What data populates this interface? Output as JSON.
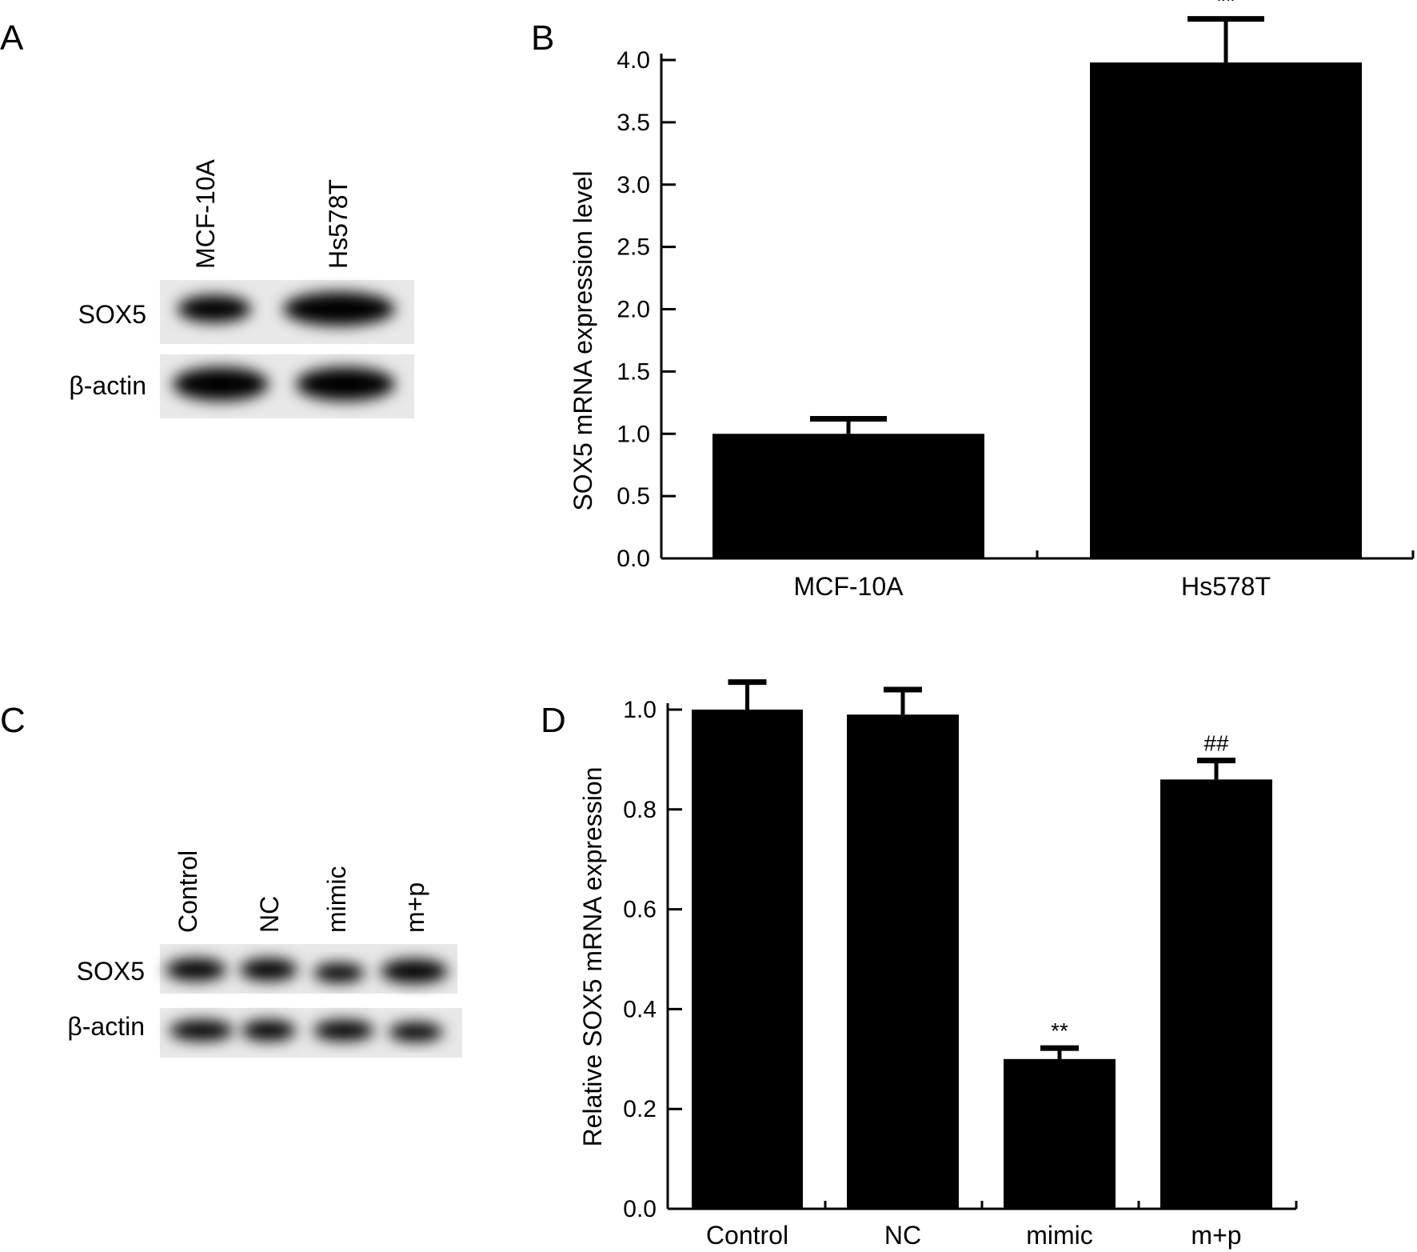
{
  "panels": {
    "A": {
      "letter": "A",
      "lanes": [
        "MCF-10A",
        "Hs578T"
      ],
      "rows": [
        {
          "label": "SOX5",
          "intensities": [
            0.78,
            1.0
          ]
        },
        {
          "label": "β-actin",
          "intensities": [
            1.0,
            1.0
          ]
        }
      ]
    },
    "C": {
      "letter": "C",
      "lanes": [
        "Control",
        "NC",
        "mimic",
        "m+p"
      ],
      "rows": [
        {
          "label": "SOX5",
          "intensities": [
            0.95,
            0.92,
            0.7,
            0.98
          ]
        },
        {
          "label": "β-actin",
          "intensities": [
            0.95,
            0.9,
            0.95,
            0.88
          ]
        }
      ]
    }
  },
  "chart_data": [
    {
      "panel": "B",
      "type": "bar",
      "letter": "B",
      "categories": [
        "MCF-10A",
        "Hs578T"
      ],
      "values": [
        1.0,
        3.98
      ],
      "errors": [
        0.12,
        0.35
      ],
      "annotations": [
        "",
        "**"
      ],
      "ylabel": "SOX5 mRNA expression level",
      "xlabel": "",
      "ylim": [
        0,
        4.0
      ],
      "yticks": [
        "0.0",
        "0.5",
        "1.0",
        "1.5",
        "2.0",
        "2.5",
        "3.0",
        "3.5",
        "4.0"
      ],
      "bar_color": "#000000",
      "grid": false
    },
    {
      "panel": "D",
      "type": "bar",
      "letter": "D",
      "categories": [
        "Control",
        "NC",
        "mimic",
        "m+p"
      ],
      "values": [
        1.0,
        0.99,
        0.3,
        0.86
      ],
      "errors": [
        0.055,
        0.05,
        0.022,
        0.038
      ],
      "annotations": [
        "",
        "",
        "**",
        "##"
      ],
      "ylabel": "Relative SOX5 mRNA expression",
      "xlabel": "",
      "ylim": [
        0,
        1.0
      ],
      "yticks": [
        "0.0",
        "0.2",
        "0.4",
        "0.6",
        "0.8",
        "1.0"
      ],
      "bar_color": "#000000",
      "grid": false
    }
  ]
}
